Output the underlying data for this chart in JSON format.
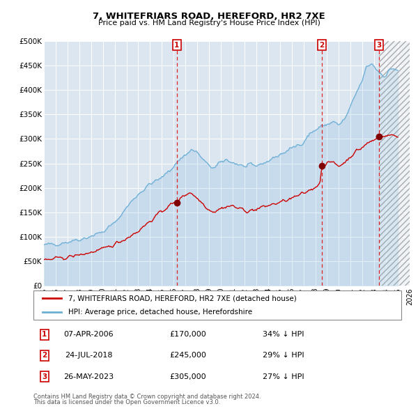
{
  "title": "7, WHITEFRIARS ROAD, HEREFORD, HR2 7XE",
  "subtitle": "Price paid vs. HM Land Registry's House Price Index (HPI)",
  "legend_red": "7, WHITEFRIARS ROAD, HEREFORD, HR2 7XE (detached house)",
  "legend_blue": "HPI: Average price, detached house, Herefordshire",
  "footer1": "Contains HM Land Registry data © Crown copyright and database right 2024.",
  "footer2": "This data is licensed under the Open Government Licence v3.0.",
  "transactions": [
    {
      "label": "1",
      "date": "07-APR-2006",
      "price": 170000,
      "discount": "34% ↓ HPI",
      "x_year": 2006.27
    },
    {
      "label": "2",
      "date": "24-JUL-2018",
      "price": 245000,
      "discount": "29% ↓ HPI",
      "x_year": 2018.56
    },
    {
      "label": "3",
      "date": "26-MAY-2023",
      "price": 305000,
      "discount": "27% ↓ HPI",
      "x_year": 2023.4
    }
  ],
  "ylim": [
    0,
    500000
  ],
  "xlim_start": 1995.0,
  "xlim_end": 2026.0,
  "yticks": [
    0,
    50000,
    100000,
    150000,
    200000,
    250000,
    300000,
    350000,
    400000,
    450000,
    500000
  ],
  "ytick_labels": [
    "£0",
    "£50K",
    "£100K",
    "£150K",
    "£200K",
    "£250K",
    "£300K",
    "£350K",
    "£400K",
    "£450K",
    "£500K"
  ],
  "xticks": [
    1995,
    1996,
    1997,
    1998,
    1999,
    2000,
    2001,
    2002,
    2003,
    2004,
    2005,
    2006,
    2007,
    2008,
    2009,
    2010,
    2011,
    2012,
    2013,
    2014,
    2015,
    2016,
    2017,
    2018,
    2019,
    2020,
    2021,
    2022,
    2023,
    2024,
    2025,
    2026
  ],
  "hpi_color": "#6baed6",
  "price_color": "#cc0000",
  "dot_color": "#800000",
  "vline_color": "#cc0000",
  "bg_plot": "#dce6f1",
  "grid_color": "#ffffff",
  "hpi_anchors": [
    [
      1995.0,
      82000
    ],
    [
      1996.0,
      86000
    ],
    [
      1997.0,
      90000
    ],
    [
      1998.5,
      98000
    ],
    [
      2000.0,
      110000
    ],
    [
      2001.0,
      128000
    ],
    [
      2002.0,
      160000
    ],
    [
      2003.0,
      188000
    ],
    [
      2004.0,
      208000
    ],
    [
      2005.0,
      220000
    ],
    [
      2006.0,
      245000
    ],
    [
      2006.5,
      258000
    ],
    [
      2007.5,
      278000
    ],
    [
      2008.0,
      272000
    ],
    [
      2008.8,
      248000
    ],
    [
      2009.5,
      240000
    ],
    [
      2010.0,
      252000
    ],
    [
      2010.5,
      258000
    ],
    [
      2011.0,
      252000
    ],
    [
      2011.5,
      248000
    ],
    [
      2012.0,
      243000
    ],
    [
      2013.0,
      245000
    ],
    [
      2014.0,
      255000
    ],
    [
      2015.0,
      268000
    ],
    [
      2016.0,
      280000
    ],
    [
      2017.0,
      295000
    ],
    [
      2017.5,
      310000
    ],
    [
      2018.0,
      318000
    ],
    [
      2018.5,
      325000
    ],
    [
      2019.0,
      330000
    ],
    [
      2019.5,
      335000
    ],
    [
      2020.0,
      328000
    ],
    [
      2020.5,
      340000
    ],
    [
      2021.0,
      365000
    ],
    [
      2021.5,
      395000
    ],
    [
      2022.0,
      420000
    ],
    [
      2022.3,
      445000
    ],
    [
      2022.8,
      455000
    ],
    [
      2023.0,
      448000
    ],
    [
      2023.3,
      440000
    ],
    [
      2023.5,
      435000
    ],
    [
      2023.8,
      430000
    ],
    [
      2024.0,
      432000
    ],
    [
      2024.3,
      440000
    ],
    [
      2024.6,
      445000
    ],
    [
      2025.0,
      440000
    ]
  ],
  "red_anchors": [
    [
      1995.0,
      52000
    ],
    [
      1996.0,
      55000
    ],
    [
      1997.0,
      58000
    ],
    [
      1998.0,
      63000
    ],
    [
      1999.0,
      68000
    ],
    [
      2000.0,
      74000
    ],
    [
      2001.0,
      85000
    ],
    [
      2002.0,
      97000
    ],
    [
      2003.0,
      112000
    ],
    [
      2004.0,
      132000
    ],
    [
      2005.0,
      152000
    ],
    [
      2005.5,
      162000
    ],
    [
      2006.0,
      168000
    ],
    [
      2006.27,
      170000
    ],
    [
      2006.5,
      178000
    ],
    [
      2007.0,
      186000
    ],
    [
      2007.3,
      191000
    ],
    [
      2007.6,
      188000
    ],
    [
      2008.0,
      178000
    ],
    [
      2008.5,
      168000
    ],
    [
      2009.0,
      155000
    ],
    [
      2009.5,
      152000
    ],
    [
      2010.0,
      158000
    ],
    [
      2010.5,
      162000
    ],
    [
      2011.0,
      163000
    ],
    [
      2011.5,
      158000
    ],
    [
      2012.0,
      154000
    ],
    [
      2012.5,
      153000
    ],
    [
      2013.0,
      156000
    ],
    [
      2013.5,
      160000
    ],
    [
      2014.0,
      164000
    ],
    [
      2015.0,
      170000
    ],
    [
      2016.0,
      178000
    ],
    [
      2017.0,
      188000
    ],
    [
      2017.5,
      195000
    ],
    [
      2018.0,
      202000
    ],
    [
      2018.4,
      210000
    ],
    [
      2018.56,
      245000
    ],
    [
      2018.8,
      248000
    ],
    [
      2019.0,
      250000
    ],
    [
      2019.5,
      252000
    ],
    [
      2020.0,
      245000
    ],
    [
      2020.5,
      252000
    ],
    [
      2021.0,
      265000
    ],
    [
      2021.5,
      275000
    ],
    [
      2022.0,
      283000
    ],
    [
      2022.5,
      292000
    ],
    [
      2023.0,
      298000
    ],
    [
      2023.4,
      305000
    ],
    [
      2023.7,
      306000
    ],
    [
      2024.0,
      305000
    ],
    [
      2024.3,
      308000
    ],
    [
      2024.6,
      307000
    ],
    [
      2025.0,
      305000
    ]
  ]
}
